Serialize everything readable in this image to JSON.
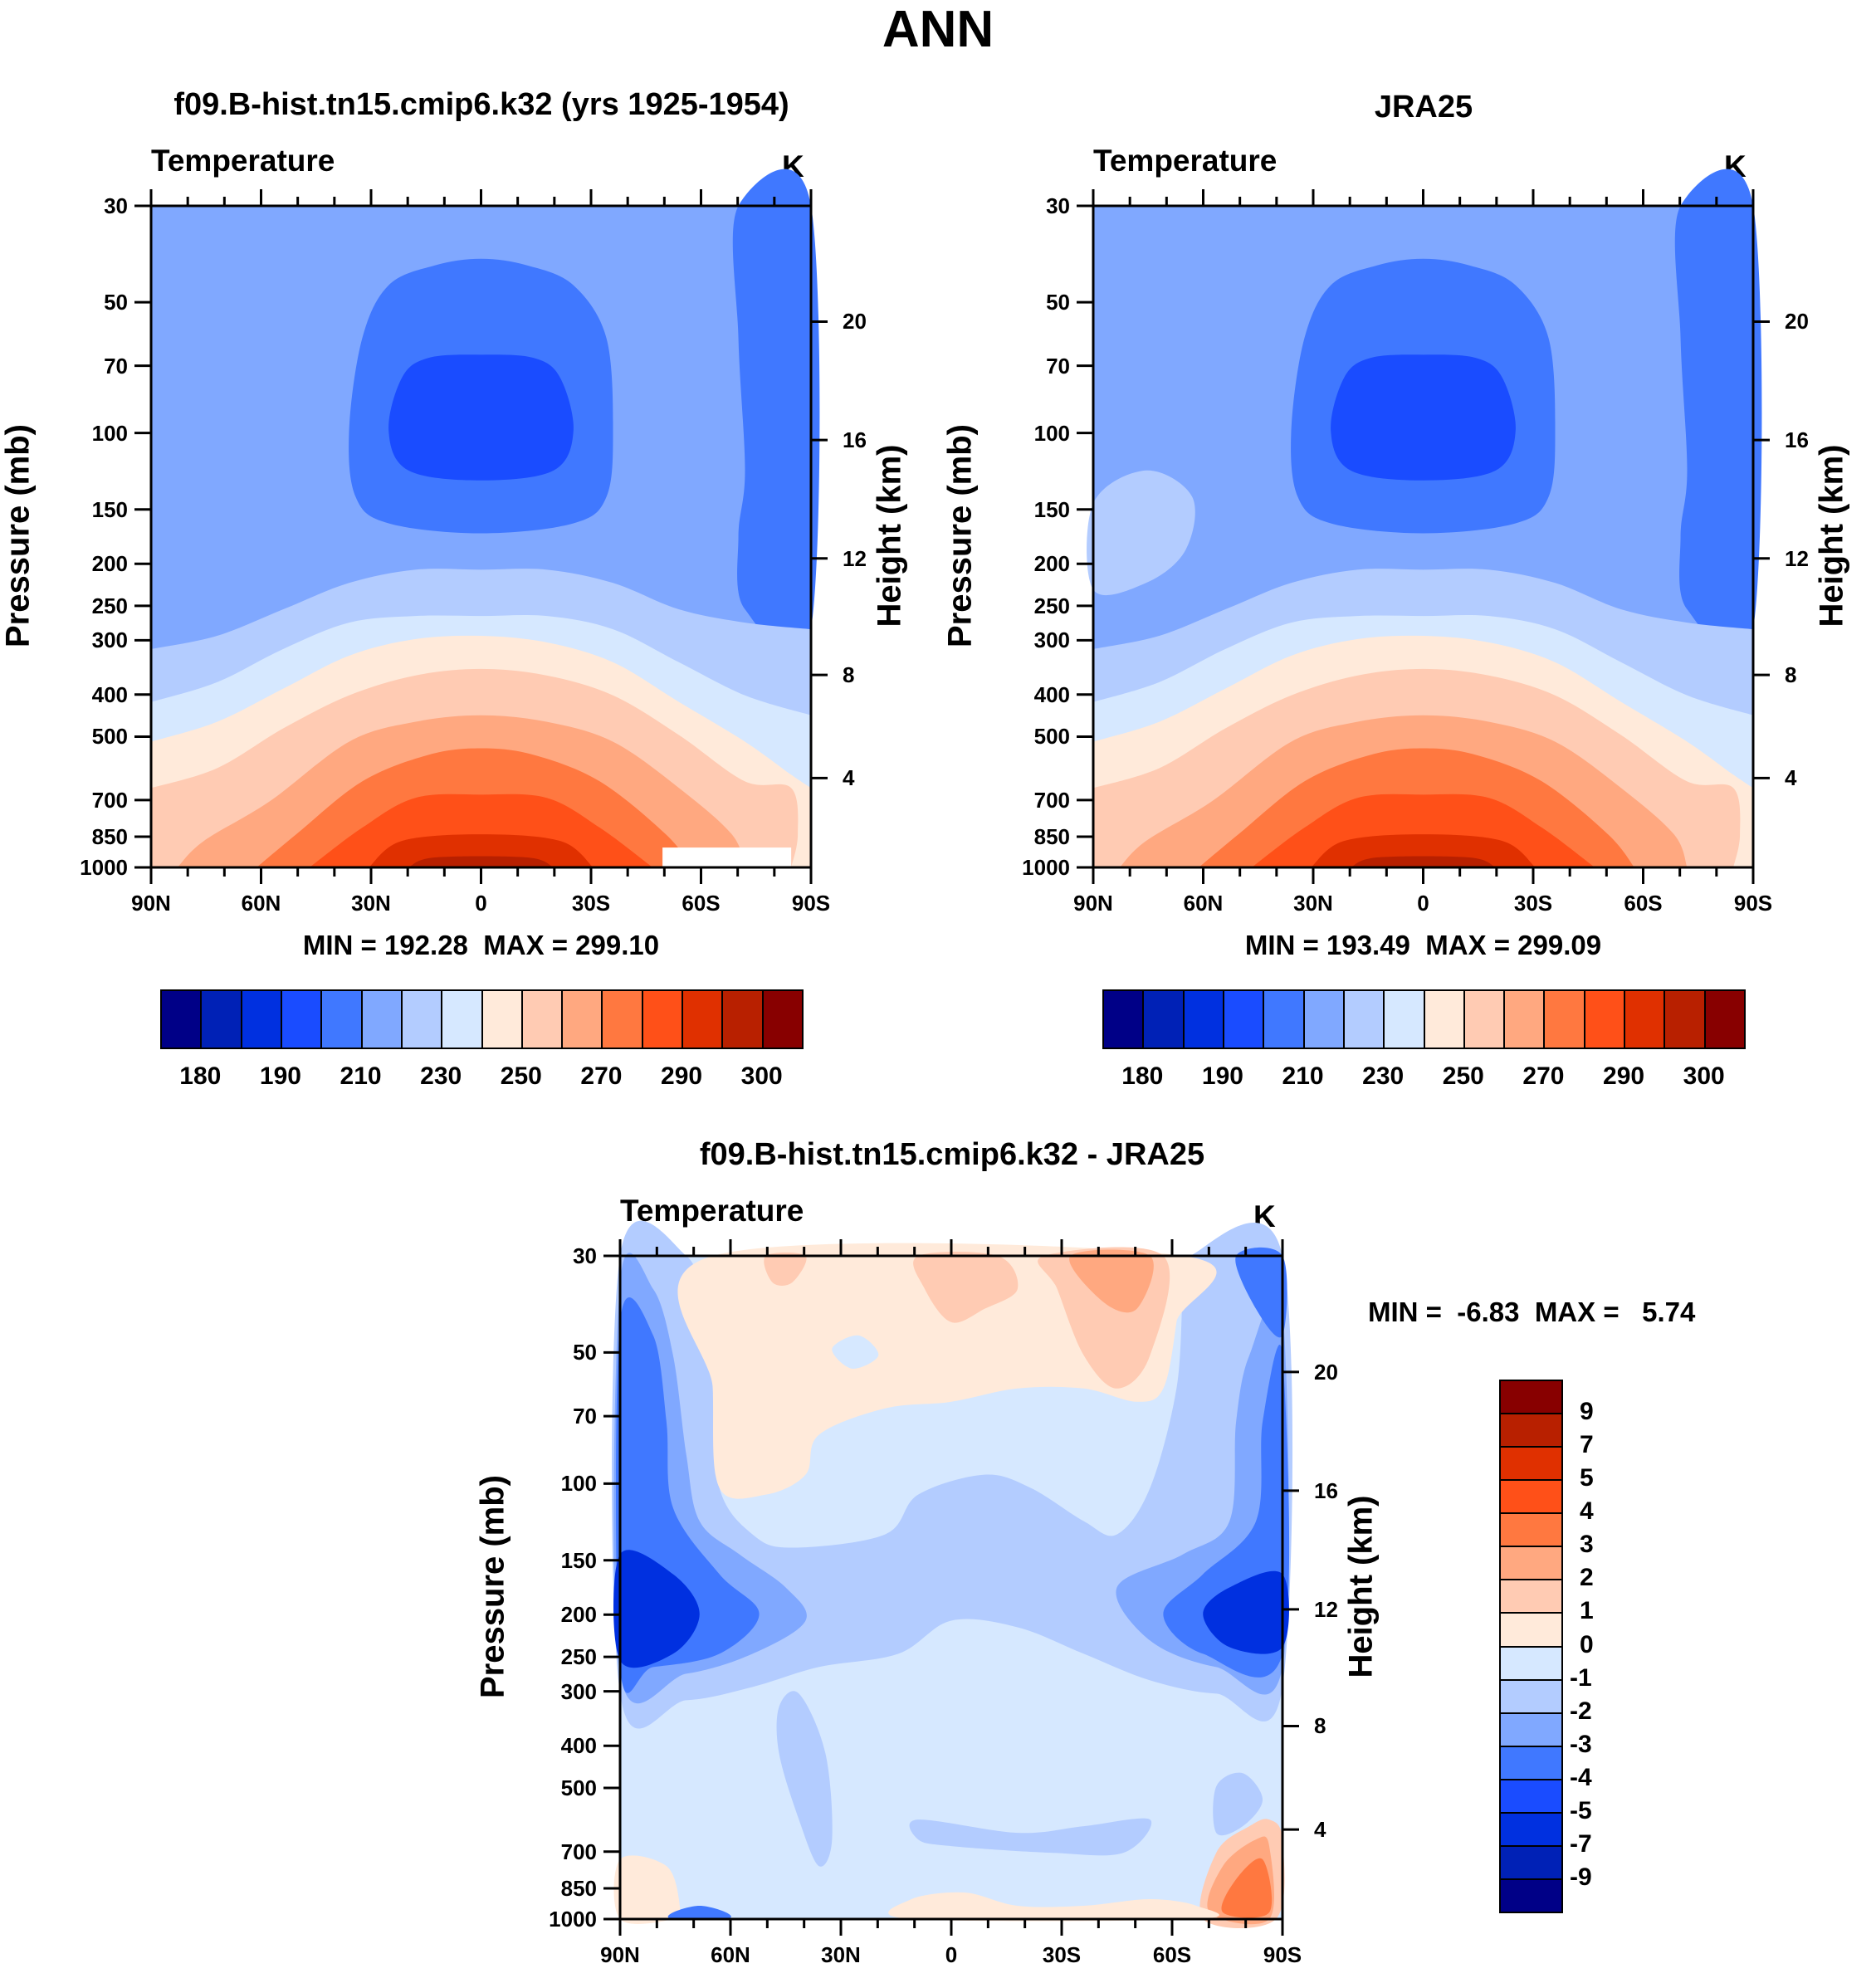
{
  "title": "ANN",
  "chart_data": [
    {
      "type": "heatmap",
      "subtype": "contour",
      "title": "f09.B-hist.tn15.cmip6.k32 (yrs 1925-1954)",
      "left_label": "Temperature",
      "units": "K",
      "ylabel": "Pressure (mb)",
      "ylabel_right": "Height (km)",
      "min_text": "MIN = 192.28  MAX = 299.10",
      "min": 192.28,
      "max": 299.1,
      "x_ticks": [
        "90N",
        "60N",
        "30N",
        "0",
        "30S",
        "60S",
        "90S"
      ],
      "y_ticks": [
        "30",
        "50",
        "70",
        "100",
        "150",
        "200",
        "250",
        "300",
        "400",
        "500",
        "700",
        "850",
        "1000"
      ],
      "y_ticks_right": [
        "20",
        "16",
        "12",
        "8",
        "4"
      ],
      "ylim": [
        1000,
        30
      ],
      "colorbar_labels": [
        "180",
        "190",
        "210",
        "230",
        "250",
        "270",
        "290",
        "300"
      ]
    },
    {
      "type": "heatmap",
      "subtype": "contour",
      "title": "JRA25",
      "left_label": "Temperature",
      "units": "K",
      "ylabel": "Pressure (mb)",
      "ylabel_right": "Height (km)",
      "min_text": "MIN = 193.49  MAX = 299.09",
      "min": 193.49,
      "max": 299.09,
      "x_ticks": [
        "90N",
        "60N",
        "30N",
        "0",
        "30S",
        "60S",
        "90S"
      ],
      "y_ticks": [
        "30",
        "50",
        "70",
        "100",
        "150",
        "200",
        "250",
        "300",
        "400",
        "500",
        "700",
        "850",
        "1000"
      ],
      "y_ticks_right": [
        "20",
        "16",
        "12",
        "8",
        "4"
      ],
      "ylim": [
        1000,
        30
      ],
      "colorbar_labels": [
        "180",
        "190",
        "210",
        "230",
        "250",
        "270",
        "290",
        "300"
      ]
    },
    {
      "type": "heatmap",
      "subtype": "contour",
      "title": "f09.B-hist.tn15.cmip6.k32 - JRA25",
      "left_label": "Temperature",
      "units": "K",
      "ylabel": "Pressure (mb)",
      "ylabel_right": "Height (km)",
      "min_text": "MIN =  -6.83  MAX =   5.74",
      "min": -6.83,
      "max": 5.74,
      "x_ticks": [
        "90N",
        "60N",
        "30N",
        "0",
        "30S",
        "60S",
        "90S"
      ],
      "y_ticks": [
        "30",
        "50",
        "70",
        "100",
        "150",
        "200",
        "250",
        "300",
        "400",
        "500",
        "700",
        "850",
        "1000"
      ],
      "y_ticks_right": [
        "20",
        "16",
        "12",
        "8",
        "4"
      ],
      "ylim": [
        1000,
        30
      ],
      "colorbar_labels": [
        "9",
        "7",
        "5",
        "4",
        "3",
        "2",
        "1",
        "0",
        "-1",
        "-2",
        "-3",
        "-4",
        "-5",
        "-7",
        "-9"
      ]
    }
  ],
  "colors": [
    "#000087",
    "#0021b6",
    "#0030e0",
    "#1a4cff",
    "#4078ff",
    "#80a8ff",
    "#b3ccff",
    "#d6e8ff",
    "#ffeada",
    "#ffcbb3",
    "#ffa880",
    "#ff7840",
    "#ff5018",
    "#e03000",
    "#b82000",
    "#880000"
  ]
}
